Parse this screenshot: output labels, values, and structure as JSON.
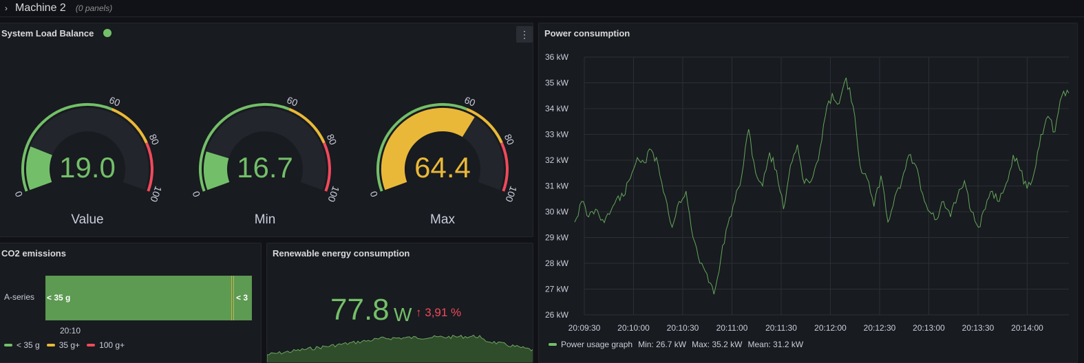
{
  "row": {
    "title": "Machine 2",
    "panel_count": "(0 panels)",
    "chevron_icon": "chevron-right-icon"
  },
  "colors": {
    "green": "#73bf69",
    "yellow": "#eab839",
    "red": "#f2495c",
    "bg": "#181b1f"
  },
  "gauge_panel": {
    "title": "System Load Balance",
    "menu_icon": "more-vertical-icon",
    "gauges": [
      {
        "label": "Value",
        "value": 19.0,
        "display": "19.0",
        "color": "#73bf69"
      },
      {
        "label": "Min",
        "value": 16.7,
        "display": "16.7",
        "color": "#73bf69"
      },
      {
        "label": "Max",
        "value": 64.4,
        "display": "64.4",
        "color": "#eab839"
      }
    ],
    "min": 0,
    "max": 100,
    "thresholds": [
      {
        "from": 0,
        "to": 60,
        "color": "#73bf69"
      },
      {
        "from": 60,
        "to": 80,
        "color": "#eab839"
      },
      {
        "from": 80,
        "to": 100,
        "color": "#f2495c"
      }
    ],
    "tick_labels": [
      "0",
      "60",
      "80",
      "100"
    ]
  },
  "co2_panel": {
    "title": "CO2 emissions",
    "series_label": "A-series",
    "segment_labels": [
      "< 35 g",
      "< 3"
    ],
    "time_label": "20:10",
    "legend": [
      {
        "label": "< 35 g",
        "color": "#73bf69"
      },
      {
        "label": "35 g+",
        "color": "#eab839"
      },
      {
        "label": "100 g+",
        "color": "#f2495c"
      }
    ]
  },
  "renewable_panel": {
    "title": "Renewable energy consumption",
    "value": "77.8",
    "unit": "W",
    "delta": "3,91 %",
    "delta_icon": "arrow-up-icon"
  },
  "power_panel": {
    "title": "Power consumption",
    "legend": {
      "label": "Power usage graph",
      "min": "Min: 26.7 kW",
      "max": "Max: 35.2 kW",
      "mean": "Mean: 31.2 kW"
    },
    "chart_data": {
      "type": "line",
      "title": "Power consumption",
      "ylabel": "kW",
      "ylim": [
        26,
        36
      ],
      "y_ticks": [
        "26 kW",
        "27 kW",
        "28 kW",
        "29 kW",
        "30 kW",
        "31 kW",
        "32 kW",
        "33 kW",
        "34 kW",
        "35 kW",
        "36 kW"
      ],
      "x_ticks": [
        "20:09:30",
        "20:10:00",
        "20:10:30",
        "20:11:00",
        "20:11:30",
        "20:12:00",
        "20:12:30",
        "20:13:00",
        "20:13:30",
        "20:14:00"
      ],
      "series": [
        {
          "name": "Power usage graph",
          "color": "#73bf69",
          "values": [
            29.6,
            30.4,
            29.8,
            30.1,
            29.7,
            29.9,
            30.5,
            30.6,
            31.3,
            32.1,
            31.9,
            32.4,
            31.8,
            30.6,
            29.4,
            30.4,
            30.8,
            29.0,
            28.0,
            27.6,
            26.8,
            28.2,
            29.5,
            30.4,
            31.4,
            33.2,
            31.5,
            31.0,
            32.3,
            31.6,
            30.1,
            31.8,
            32.6,
            31.1,
            31.2,
            32.0,
            33.7,
            34.6,
            34.2,
            35.2,
            34.1,
            31.8,
            31.3,
            30.2,
            31.4,
            29.6,
            30.6,
            31.2,
            32.2,
            31.8,
            30.7,
            30.0,
            29.7,
            30.4,
            29.8,
            30.6,
            31.2,
            30.0,
            29.4,
            30.1,
            30.8,
            30.4,
            31.1,
            32.2,
            31.6,
            30.9,
            31.5,
            33.0,
            33.7,
            33.1,
            34.5,
            34.6
          ]
        }
      ]
    }
  }
}
